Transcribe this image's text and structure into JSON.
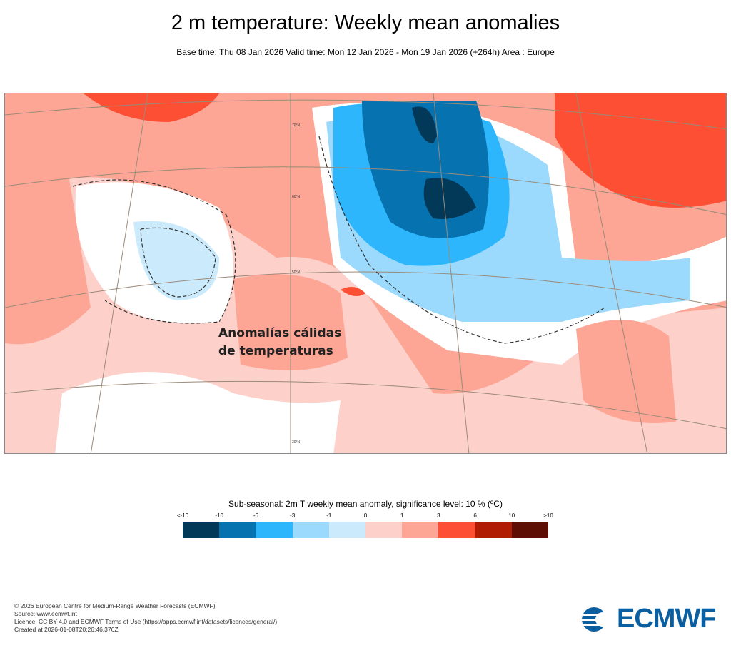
{
  "title": "2 m temperature: Weekly mean anomalies",
  "subtitle": "Base time: Thu 08 Jan 2026 Valid time: Mon 12 Jan 2026 - Mon 19 Jan 2026 (+264h) Area : Europe",
  "map": {
    "annotation_line1": "Anomalías cálidas",
    "annotation_line2": "de temperaturas",
    "lat_labels": [
      "70°N",
      "60°N",
      "50°N",
      "30°N"
    ]
  },
  "colorbar": {
    "title": "Sub-seasonal: 2m T weekly mean anomaly, significance level: 10 % (ºC)",
    "labels": [
      "<-10",
      "-10",
      "-6",
      "-3",
      "-1",
      "0",
      "1",
      "3",
      "6",
      "10",
      ">10"
    ],
    "colors": [
      "#023858",
      "#0673b0",
      "#2db6fb",
      "#9bdafd",
      "#cbebfc",
      "#fed0ca",
      "#fda696",
      "#fd4f33",
      "#b01c02",
      "#5e0d04"
    ]
  },
  "footer": [
    "© 2026 European Centre for Medium-Range Weather Forecasts (ECMWF)",
    "Source: www.ecmwf.int",
    "Licence: CC BY 4.0 and ECMWF Terms of Use (https://apps.ecmwf.int/datasets/licences/general/)",
    "Created at 2026-01-08T20:26:46.376Z"
  ],
  "logo": "ECMWF"
}
